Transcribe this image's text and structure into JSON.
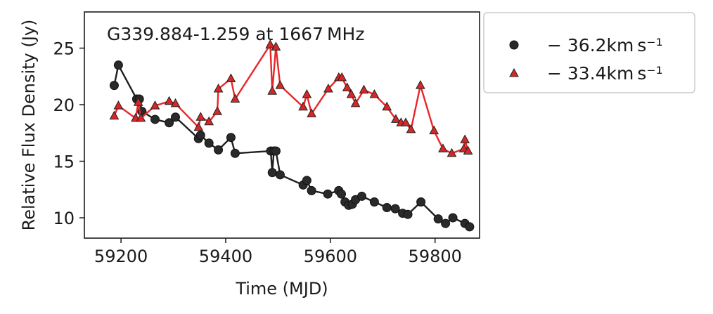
{
  "chart_data": {
    "type": "line",
    "title": "G339.884-1.259 at 1667 MHz",
    "xlabel": "Time (MJD)",
    "ylabel": "Relative Flux Density (Jy)",
    "xlim": [
      59130,
      59885
    ],
    "ylim": [
      8.2,
      28.2
    ],
    "xticks": [
      "59200",
      "59400",
      "59600",
      "59800"
    ],
    "xtick_values": [
      59200,
      59400,
      59600,
      59800
    ],
    "yticks": [
      "10",
      "15",
      "20",
      "25"
    ],
    "ytick_values": [
      10,
      15,
      20,
      25
    ],
    "grid": false,
    "legend_position": "outside-right",
    "series": [
      {
        "name": "− 36.2km s⁻¹",
        "marker": "circle",
        "color": "#2a2a2a",
        "line_color": "#1f1f1f",
        "x": [
          59187,
          59195,
          59230,
          59235,
          59240,
          59265,
          59292,
          59304,
          59348,
          59352,
          59368,
          59386,
          59410,
          59418,
          59486,
          59489,
          59492,
          59496,
          59504,
          59548,
          59555,
          59564,
          59595,
          59616,
          59621,
          59628,
          59635,
          59642,
          59648,
          59660,
          59684,
          59708,
          59724,
          59738,
          59748,
          59773,
          59806,
          59820,
          59834,
          59857,
          59866
        ],
        "y": [
          21.7,
          23.5,
          20.5,
          20.5,
          19.4,
          18.7,
          18.4,
          18.9,
          17.0,
          17.3,
          16.6,
          16.0,
          17.1,
          15.7,
          15.9,
          14.0,
          15.9,
          15.9,
          13.8,
          12.9,
          13.3,
          12.4,
          12.1,
          12.4,
          12.1,
          11.4,
          11.1,
          11.2,
          11.6,
          11.9,
          11.4,
          10.9,
          10.8,
          10.4,
          10.3,
          11.4,
          9.9,
          9.5,
          10.0,
          9.5,
          9.2
        ]
      },
      {
        "name": "− 33.4km s⁻¹",
        "marker": "triangle",
        "color": "#d62728",
        "line_color": "#e8262a",
        "x": [
          59187,
          59195,
          59228,
          59233,
          59238,
          59265,
          59292,
          59304,
          59348,
          59352,
          59368,
          59384,
          59386,
          59410,
          59418,
          59485,
          59489,
          59496,
          59504,
          59548,
          59555,
          59564,
          59596,
          59616,
          59622,
          59632,
          59640,
          59648,
          59664,
          59684,
          59708,
          59725,
          59735,
          59744,
          59754,
          59772,
          59798,
          59815,
          59832,
          59855,
          59857,
          59863
        ],
        "y": [
          19.0,
          19.9,
          18.8,
          20.2,
          18.8,
          19.9,
          20.3,
          20.1,
          18.0,
          18.9,
          18.5,
          19.4,
          21.4,
          22.3,
          20.5,
          25.3,
          21.2,
          25.1,
          21.7,
          19.8,
          20.9,
          19.2,
          21.4,
          22.4,
          22.4,
          21.5,
          20.9,
          20.1,
          21.3,
          20.9,
          19.8,
          18.7,
          18.4,
          18.4,
          17.8,
          21.7,
          17.7,
          16.1,
          15.7,
          16.1,
          16.9,
          15.9
        ]
      }
    ]
  }
}
